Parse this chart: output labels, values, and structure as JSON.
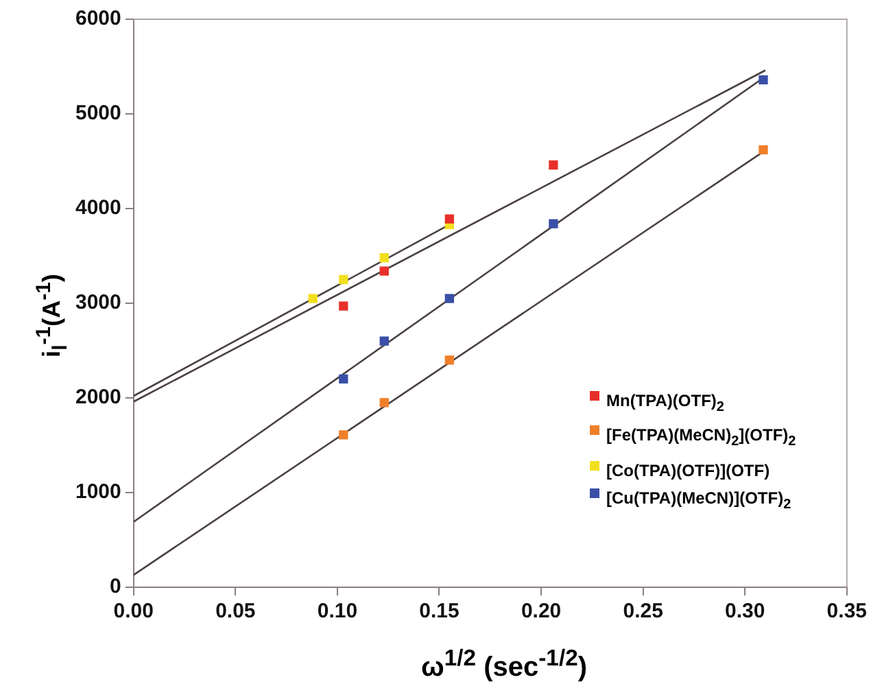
{
  "chart_data": {
    "type": "scatter",
    "xlabel": "ω$^{1/2}$  (sec$^{-1/2}$)",
    "ylabel": "i$_{l}$$^{-1}$(A$^{-1}$)",
    "xlim": [
      0,
      0.35
    ],
    "xticks": [
      {
        "value": 0,
        "label": "0.00"
      },
      {
        "value": 0.05,
        "label": "0.05"
      },
      {
        "value": 0.1,
        "label": "0.10"
      },
      {
        "value": 0.15,
        "label": "0.15"
      },
      {
        "value": 0.2,
        "label": "0.20"
      },
      {
        "value": 0.25,
        "label": "0.25"
      },
      {
        "value": 0.3,
        "label": "0.30"
      },
      {
        "value": 0.35,
        "label": "0.35"
      }
    ],
    "ylim": [
      0,
      6000
    ],
    "yticks": [
      0,
      1000,
      2000,
      3000,
      4000,
      5000,
      6000
    ],
    "legend": "bottom right",
    "marker": "square",
    "series": [
      {
        "name": "Mn(TPA)(OTF)$_{2}$",
        "color": "#e8302a",
        "x": [
          0.103,
          0.123,
          0.155,
          0.206
        ],
        "values": [
          2970,
          3340,
          3890,
          4460
        ]
      },
      {
        "name": "[Fe(TPA)(MeCN)$_{2}$](OTF)$_{2}$",
        "color": "#f07f2a",
        "x": [
          0.103,
          0.123,
          0.155,
          0.309
        ],
        "values": [
          1610,
          1950,
          2400,
          4620
        ]
      },
      {
        "name": "[Co(TPA)(OTF)](OTF)",
        "color": "#f2e020",
        "x": [
          0.088,
          0.103,
          0.123,
          0.155
        ],
        "values": [
          3050,
          3250,
          3480,
          3830
        ]
      },
      {
        "name": "[Cu(TPA)(MeCN)](OTF)$_{2}$",
        "color": "#3a4fa8",
        "x": [
          0.103,
          0.123,
          0.155,
          0.206,
          0.309
        ],
        "values": [
          2200,
          2600,
          3050,
          3840,
          5360
        ]
      },
      {
        "type": "line",
        "marker": "none",
        "color": "#4a4040",
        "x": [
          0,
          0.31
        ],
        "values": [
          1960,
          5460
        ]
      },
      {
        "type": "line",
        "marker": "none",
        "color": "#4a4040",
        "x": [
          0,
          0.155
        ],
        "values": [
          2020,
          3830
        ]
      },
      {
        "type": "line",
        "marker": "none",
        "color": "#4a4040",
        "x": [
          0,
          0.309
        ],
        "values": [
          130,
          4600
        ]
      },
      {
        "type": "line",
        "marker": "none",
        "color": "#4a4040",
        "x": [
          0,
          0.309
        ],
        "values": [
          690,
          5380
        ]
      }
    ]
  }
}
